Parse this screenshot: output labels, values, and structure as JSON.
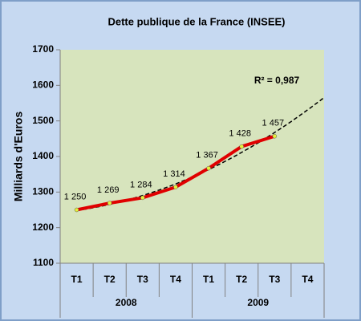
{
  "chart_data": {
    "type": "line",
    "title": "Dette publique de la France (INSEE)",
    "y_label": "Milliards d'Euros",
    "annotation": "R² = 0,987",
    "categories": [
      "T1",
      "T2",
      "T3",
      "T4",
      "T1",
      "T2",
      "T3",
      "T4"
    ],
    "category_groups": [
      "2008",
      "2009"
    ],
    "values": [
      1250,
      1269,
      1284,
      1314,
      1367,
      1428,
      1457,
      null
    ],
    "value_labels": [
      "1 250",
      "1 269",
      "1 284",
      "1 314",
      "1 367",
      "1 428",
      "1 457",
      null
    ],
    "color": "#e00000",
    "marker_color": "#e6f03c",
    "trendline": true,
    "trendline_color": "#000000",
    "ylim": [
      1100,
      1700
    ],
    "yticks": [
      1100,
      1200,
      1300,
      1400,
      1500,
      1600,
      1700
    ],
    "grid": false
  }
}
